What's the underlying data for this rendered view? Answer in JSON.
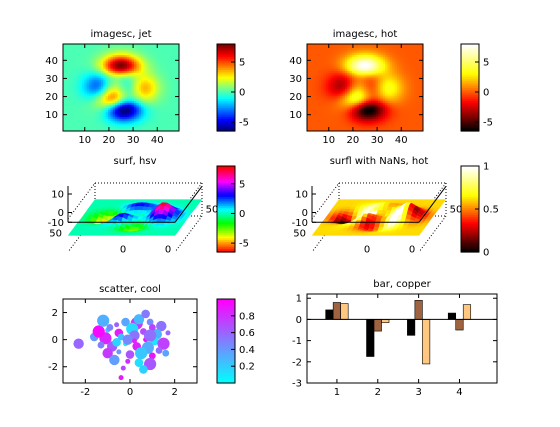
{
  "chart_data": [
    {
      "type": "heatmap",
      "title": "imagesc, jet",
      "colormap": "jet",
      "xticks": [
        "10",
        "20",
        "30",
        "40"
      ],
      "yticks": [
        "10",
        "20",
        "30",
        "40"
      ],
      "xlim": [
        1,
        49
      ],
      "ylim": [
        1,
        49
      ],
      "clim": [
        -6.5,
        8
      ],
      "colorbar_ticks": [
        "5",
        "0",
        "-5"
      ],
      "colorbar_tick_values": [
        5,
        0,
        -5
      ]
    },
    {
      "type": "heatmap",
      "title": "imagesc, hot",
      "colormap": "hot",
      "xticks": [
        "10",
        "20",
        "30",
        "40"
      ],
      "yticks": [
        "10",
        "20",
        "30",
        "40"
      ],
      "xlim": [
        1,
        49
      ],
      "ylim": [
        1,
        49
      ],
      "clim": [
        -6.5,
        8
      ],
      "colorbar_ticks": [
        "5",
        "0",
        "-5"
      ],
      "colorbar_tick_values": [
        5,
        0,
        -5
      ]
    },
    {
      "type": "surface",
      "title": "surf, hsv",
      "colormap": "hsv",
      "zticks": [
        "10",
        "0",
        "-10"
      ],
      "yticks": [
        "50",
        "0"
      ],
      "xticks": [
        "0",
        "50"
      ],
      "clim": [
        -6.5,
        8
      ],
      "colorbar_ticks": [
        "5",
        "0",
        "-5"
      ],
      "colorbar_tick_values": [
        5,
        0,
        -5
      ]
    },
    {
      "type": "surface",
      "title": "surfl with NaNs, hot",
      "colormap": "hot",
      "zticks": [
        "10",
        "0",
        "-10"
      ],
      "yticks": [
        "50",
        "0"
      ],
      "xticks": [
        "0",
        "50"
      ],
      "clim": [
        0,
        1
      ],
      "colorbar_ticks": [
        "1",
        "0.5",
        "0"
      ],
      "colorbar_tick_values": [
        1,
        0.5,
        0
      ]
    },
    {
      "type": "scatter",
      "title": "scatter, cool",
      "colormap": "cool",
      "xticks": [
        "-2",
        "0",
        "2"
      ],
      "yticks": [
        "2",
        "0",
        "-2"
      ],
      "xlim": [
        -3,
        3
      ],
      "ylim": [
        -3.2,
        3
      ],
      "clim": [
        0,
        1
      ],
      "colorbar_ticks": [
        "0.8",
        "0.6",
        "0.4",
        "0.2"
      ],
      "colorbar_tick_values": [
        0.8,
        0.6,
        0.4,
        0.2
      ],
      "points": [
        [
          -0.6,
          1.1,
          0.62
        ],
        [
          -0.2,
          1.3,
          0.35
        ],
        [
          0.3,
          1.2,
          0.8
        ],
        [
          0.9,
          1.3,
          0.45
        ],
        [
          1.4,
          1.0,
          0.55
        ],
        [
          -1.0,
          0.7,
          0.2
        ],
        [
          -0.5,
          0.5,
          0.9
        ],
        [
          0.1,
          0.8,
          0.15
        ],
        [
          0.6,
          0.6,
          0.7
        ],
        [
          1.2,
          0.4,
          0.3
        ],
        [
          1.7,
          0.5,
          0.6
        ],
        [
          -1.6,
          0.2,
          0.4
        ],
        [
          -1.1,
          0.1,
          0.85
        ],
        [
          -0.4,
          0.2,
          0.25
        ],
        [
          0.2,
          0.3,
          0.55
        ],
        [
          0.7,
          0.0,
          0.95
        ],
        [
          1.1,
          -0.1,
          0.1
        ],
        [
          1.5,
          -0.3,
          0.75
        ],
        [
          -1.3,
          -0.4,
          0.5
        ],
        [
          -0.8,
          -0.5,
          0.65
        ],
        [
          -0.2,
          -0.3,
          0.05
        ],
        [
          0.3,
          -0.5,
          0.88
        ],
        [
          0.8,
          -0.6,
          0.33
        ],
        [
          1.3,
          -0.8,
          0.58
        ],
        [
          -1.0,
          -1.0,
          0.78
        ],
        [
          -0.5,
          -0.9,
          0.42
        ],
        [
          0.0,
          -1.1,
          0.68
        ],
        [
          0.5,
          -1.0,
          0.22
        ],
        [
          1.0,
          -1.2,
          0.92
        ],
        [
          -0.7,
          -1.5,
          0.38
        ],
        [
          -0.1,
          -1.6,
          0.83
        ],
        [
          0.4,
          -1.7,
          0.12
        ],
        [
          0.9,
          -1.8,
          0.66
        ],
        [
          -0.9,
          0.9,
          0.48
        ],
        [
          0.4,
          1.5,
          0.28
        ],
        [
          -0.3,
          -2.1,
          0.72
        ],
        [
          0.6,
          -2.2,
          0.18
        ],
        [
          -1.4,
          0.6,
          0.97
        ],
        [
          1.6,
          -1.0,
          0.36
        ],
        [
          -2.3,
          -0.3,
          0.6
        ],
        [
          -0.4,
          -2.8,
          0.9
        ],
        [
          0.7,
          1.9,
          0.52
        ],
        [
          -1.2,
          1.4,
          0.31
        ],
        [
          1.0,
          0.9,
          0.74
        ],
        [
          -0.1,
          0.0,
          0.46
        ],
        [
          0.2,
          -0.1,
          0.86
        ],
        [
          -0.6,
          -0.2,
          0.16
        ],
        [
          0.9,
          0.3,
          0.56
        ]
      ]
    },
    {
      "type": "bar",
      "title": "bar, copper",
      "colormap": "copper",
      "categories": [
        "1",
        "2",
        "3",
        "4"
      ],
      "xticks": [
        "1",
        "2",
        "3",
        "4"
      ],
      "yticks": [
        "1",
        "0",
        "-1",
        "-2",
        "-3"
      ],
      "ylim": [
        -3,
        1.2
      ],
      "series": [
        {
          "values": [
            0.45,
            -1.75,
            -0.75,
            0.3
          ]
        },
        {
          "values": [
            0.8,
            -0.55,
            0.9,
            -0.5
          ]
        },
        {
          "values": [
            0.75,
            -0.15,
            -2.1,
            0.7
          ]
        }
      ]
    }
  ]
}
